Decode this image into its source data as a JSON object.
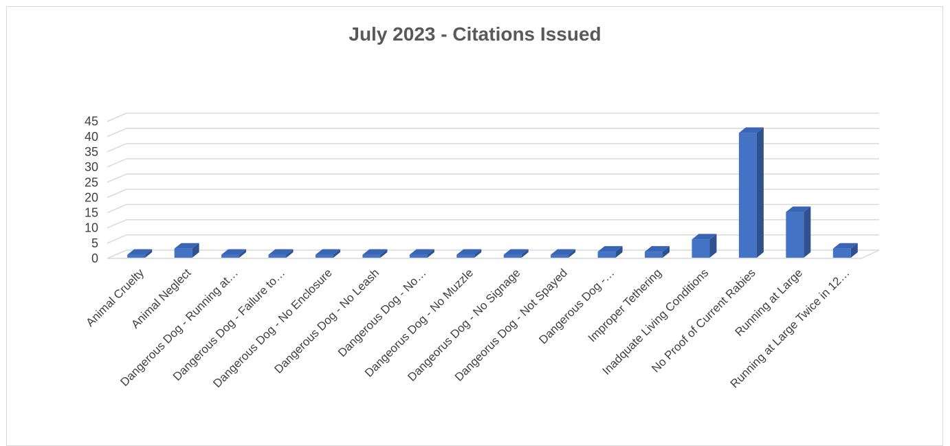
{
  "chart_data": {
    "type": "bar",
    "title": "July 2023 - Citations Issued",
    "xlabel": "",
    "ylabel": "",
    "ylim": [
      0,
      45
    ],
    "yticks": [
      0,
      5,
      10,
      15,
      20,
      25,
      30,
      35,
      40,
      45
    ],
    "grid": true,
    "legend": "none",
    "categories": [
      "Animal Cruelty",
      "Animal Neglect",
      "Dangerous Dog - Running at…",
      "Dangerous Dog - Failure to…",
      "Dangerous Dog - No Enclosure",
      "Dangerous Dog - No Leash",
      "Dangerous Dog - No…",
      "Dangeorus Dog - No Muzzle",
      "Dangeorus Dog - No Signage",
      "Dangeorus Dog - Not Spayed",
      "Dangerous Dog -…",
      "Improper Tethering",
      "Inadquate Living Conditions",
      "No Proof of Current Rabies",
      "Running at Large",
      "Running at Large Twice in 12…"
    ],
    "values": [
      1,
      3,
      1,
      1,
      1,
      1,
      1,
      1,
      1,
      1,
      2,
      2,
      6,
      41,
      15,
      3
    ],
    "colors": {
      "bar_front": "#4472c4",
      "bar_side": "#2f528f",
      "bar_top": "#3a65b4",
      "grid": "#d9d9d9",
      "text": "#404040",
      "title": "#595959"
    }
  }
}
